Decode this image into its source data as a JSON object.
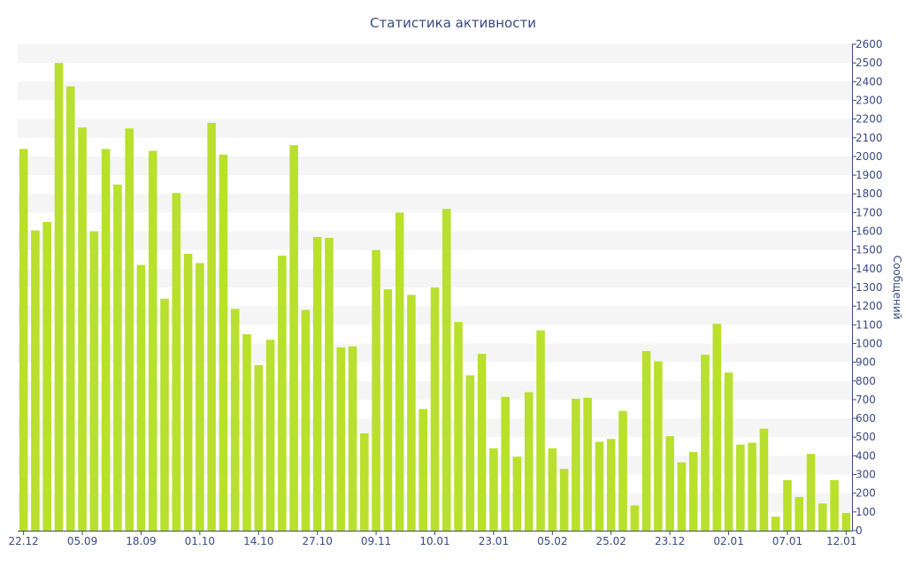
{
  "chart_data": {
    "type": "bar",
    "title": "Статистика активности",
    "xlabel": "",
    "ylabel": "Сообщений",
    "y_axis_side": "right",
    "ylim": [
      0,
      2600
    ],
    "ytick_step": 100,
    "grid": "alternating-bands",
    "legend": "none",
    "bar_color": "#b8e02c",
    "band_color": "#f5f5f5",
    "text_color": "#3b4a80",
    "axis_color": "#3b4a80",
    "values": [
      2040,
      1605,
      1650,
      2500,
      2375,
      2155,
      1600,
      2040,
      1850,
      2150,
      1420,
      2030,
      1240,
      1805,
      1480,
      1430,
      2180,
      2010,
      1185,
      1050,
      885,
      1020,
      1470,
      2060,
      1180,
      1570,
      1565,
      980,
      985,
      520,
      1500,
      1290,
      1700,
      1260,
      650,
      1300,
      1720,
      1115,
      830,
      945,
      440,
      715,
      395,
      740,
      1070,
      440,
      330,
      705,
      710,
      475,
      490,
      640,
      135,
      960,
      905,
      505,
      365,
      420,
      940,
      1105,
      845,
      460,
      470,
      545,
      75,
      270,
      180,
      410,
      145,
      270,
      95
    ],
    "x_tick_labels": [
      {
        "index": 0,
        "label": "22.12"
      },
      {
        "index": 5,
        "label": "05.09"
      },
      {
        "index": 10,
        "label": "18.09"
      },
      {
        "index": 15,
        "label": "01.10"
      },
      {
        "index": 20,
        "label": "14.10"
      },
      {
        "index": 25,
        "label": "27.10"
      },
      {
        "index": 30,
        "label": "09.11"
      },
      {
        "index": 35,
        "label": "10.01"
      },
      {
        "index": 40,
        "label": "23.01"
      },
      {
        "index": 45,
        "label": "05.02"
      },
      {
        "index": 50,
        "label": "25.02"
      },
      {
        "index": 55,
        "label": "23.12"
      },
      {
        "index": 60,
        "label": "02.01"
      },
      {
        "index": 65,
        "label": "07.01"
      },
      {
        "index": 70,
        "label": "12.01"
      }
    ]
  }
}
